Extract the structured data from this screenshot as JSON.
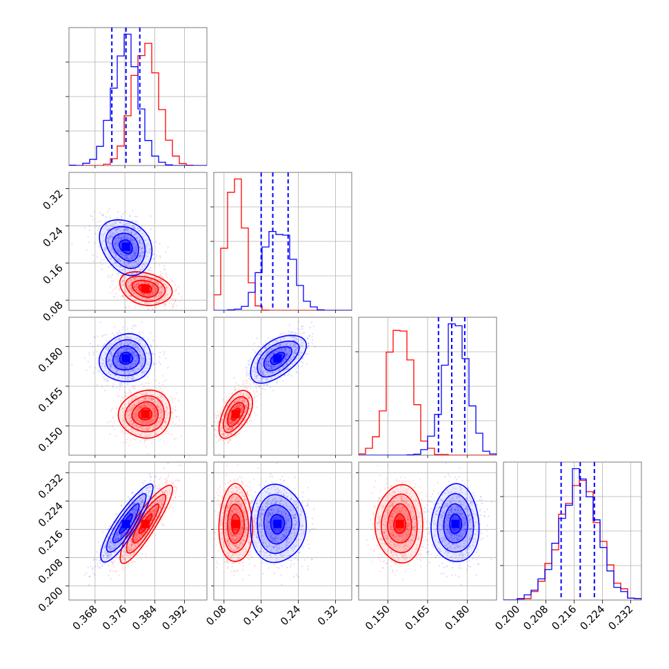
{
  "chart_data": {
    "type": "corner",
    "variables": 4,
    "colors": {
      "blue": "#0000ff",
      "red": "#ff0000"
    },
    "series": [
      {
        "color": "blue",
        "means": [
          0.3763,
          0.195,
          0.1755,
          0.2175
        ],
        "sds": [
          0.0035,
          0.03,
          0.0045,
          0.0055
        ],
        "correlations": [
          [
            0,
            1,
            -0.25
          ],
          [
            0,
            2,
            0.05
          ],
          [
            0,
            3,
            0.88
          ],
          [
            1,
            2,
            0.55
          ]
        ]
      },
      {
        "color": "red",
        "means": [
          0.3815,
          0.105,
          0.1545,
          0.2175
        ],
        "sds": [
          0.0035,
          0.018,
          0.0045,
          0.0055
        ],
        "correlations": [
          [
            0,
            1,
            -0.25
          ],
          [
            0,
            2,
            0.05
          ],
          [
            0,
            3,
            0.88
          ],
          [
            1,
            2,
            0.55
          ]
        ]
      }
    ],
    "ranges": [
      [
        0.361,
        0.398
      ],
      [
        0.058,
        0.355
      ],
      [
        0.139,
        0.191
      ],
      [
        0.196,
        0.235
      ]
    ],
    "ticks": [
      [
        "0.368",
        "0.376",
        "0.384",
        "0.392"
      ],
      [
        "0.08",
        "0.16",
        "0.24",
        "0.32"
      ],
      [
        "0.150",
        "0.165",
        "0.180"
      ],
      [
        "0.200",
        "0.208",
        "0.216",
        "0.224",
        "0.232"
      ]
    ],
    "quantiles": [
      [
        0.3725,
        0.3763,
        0.38
      ],
      [
        0.16,
        0.185,
        0.218
      ],
      [
        0.1691,
        0.1741,
        0.179
      ],
      [
        0.2123,
        0.2177,
        0.2217
      ]
    ],
    "grid": true
  }
}
